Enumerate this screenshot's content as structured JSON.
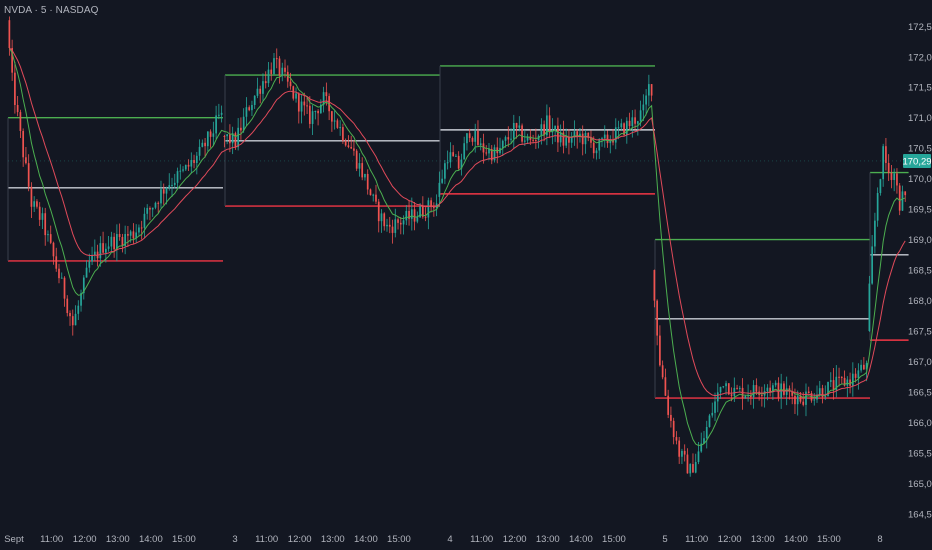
{
  "header": {
    "symbol_title": "NVDA · 5 · NASDAQ"
  },
  "colors": {
    "background": "#131722",
    "up": "#26a69a",
    "down": "#ef5350",
    "level_high": "#4caf50",
    "level_low": "#f23645",
    "level_mid": "#c8ccd4",
    "ema_fast": "#4caf50",
    "ema_slow": "#e04a5a",
    "axis_text": "#b2b5be",
    "price_tag": "#26a69a"
  },
  "chart_data": {
    "type": "candlestick",
    "interval": "5 min",
    "sessions_count": 5,
    "candles_per_session": 78,
    "ylim": [
      164.3,
      172.8
    ],
    "y_ticks": [
      "164,50",
      "165,00",
      "165,50",
      "166,00",
      "166,50",
      "167,00",
      "167,50",
      "168,00",
      "168,50",
      "169,00",
      "169,50",
      "170,00",
      "170,50",
      "171,00",
      "171,50",
      "172,00",
      "172,50"
    ],
    "x_ticks": [
      "Sept",
      "11:00",
      "12:00",
      "13:00",
      "14:00",
      "15:00",
      "3",
      "11:00",
      "12:00",
      "13:00",
      "14:00",
      "15:00",
      "4",
      "11:00",
      "12:00",
      "13:00",
      "14:00",
      "15:00",
      "5",
      "11:00",
      "12:00",
      "13:00",
      "14:00",
      "15:00",
      "8"
    ],
    "last_price_label": "170,29",
    "last_price": 170.29,
    "sessions": [
      {
        "label": "Sept 2",
        "path": [
          [
            0,
            172.6
          ],
          [
            2,
            171.6
          ],
          [
            5,
            170.7
          ],
          [
            9,
            169.6
          ],
          [
            13,
            169.3
          ],
          [
            17,
            168.7
          ],
          [
            21,
            168.1
          ],
          [
            24,
            167.6
          ],
          [
            26,
            167.9
          ],
          [
            30,
            168.6
          ],
          [
            35,
            168.9
          ],
          [
            40,
            169.0
          ],
          [
            46,
            169.1
          ],
          [
            52,
            169.5
          ],
          [
            58,
            169.9
          ],
          [
            64,
            170.1
          ],
          [
            70,
            170.4
          ],
          [
            75,
            170.8
          ],
          [
            77,
            171.0
          ]
        ],
        "open": 172.6,
        "high": 172.7,
        "low": 167.3,
        "close": 171.0,
        "pd_high": 171.0,
        "pd_mid": 169.85,
        "pd_low": 168.65
      },
      {
        "label": "Sept 3",
        "path": [
          [
            0,
            170.7
          ],
          [
            5,
            170.6
          ],
          [
            10,
            171.2
          ],
          [
            15,
            171.6
          ],
          [
            19,
            171.9
          ],
          [
            22,
            171.7
          ],
          [
            27,
            171.3
          ],
          [
            32,
            171.0
          ],
          [
            37,
            171.3
          ],
          [
            42,
            170.9
          ],
          [
            47,
            170.5
          ],
          [
            52,
            170.0
          ],
          [
            56,
            169.5
          ],
          [
            60,
            169.2
          ],
          [
            65,
            169.3
          ],
          [
            70,
            169.4
          ],
          [
            74,
            169.5
          ],
          [
            77,
            169.6
          ]
        ],
        "open": 170.7,
        "high": 172.4,
        "low": 168.9,
        "close": 169.6,
        "pd_high": 171.7,
        "pd_mid": 170.62,
        "pd_low": 169.55
      },
      {
        "label": "Sept 4",
        "path": [
          [
            0,
            169.7
          ],
          [
            4,
            170.4
          ],
          [
            8,
            170.2
          ],
          [
            12,
            170.8
          ],
          [
            16,
            170.5
          ],
          [
            22,
            170.4
          ],
          [
            28,
            170.8
          ],
          [
            34,
            170.6
          ],
          [
            40,
            170.9
          ],
          [
            46,
            170.6
          ],
          [
            52,
            170.7
          ],
          [
            58,
            170.5
          ],
          [
            64,
            170.7
          ],
          [
            70,
            170.9
          ],
          [
            75,
            171.1
          ],
          [
            77,
            171.5
          ]
        ],
        "open": 169.7,
        "high": 171.85,
        "low": 169.5,
        "close": 171.5,
        "pd_high": 171.85,
        "pd_mid": 170.8,
        "pd_low": 169.75
      },
      {
        "label": "Sept 5",
        "path": [
          [
            0,
            168.5
          ],
          [
            3,
            167.0
          ],
          [
            6,
            166.2
          ],
          [
            10,
            165.5
          ],
          [
            14,
            165.2
          ],
          [
            18,
            165.6
          ],
          [
            22,
            166.2
          ],
          [
            26,
            166.7
          ],
          [
            30,
            166.5
          ],
          [
            36,
            166.5
          ],
          [
            42,
            166.6
          ],
          [
            48,
            166.5
          ],
          [
            54,
            166.4
          ],
          [
            60,
            166.5
          ],
          [
            66,
            166.6
          ],
          [
            72,
            166.7
          ],
          [
            77,
            166.9
          ]
        ],
        "open": 168.5,
        "high": 169.0,
        "low": 164.3,
        "close": 166.9,
        "pd_high": 169.0,
        "pd_mid": 167.7,
        "pd_low": 166.4
      },
      {
        "label": "Sept 8",
        "path": [
          [
            0,
            167.5
          ],
          [
            2,
            168.8
          ],
          [
            4,
            169.8
          ],
          [
            6,
            170.4
          ],
          [
            8,
            170.1
          ],
          [
            10,
            170.1
          ],
          [
            12,
            169.6
          ],
          [
            13,
            169.7
          ]
        ],
        "partial_candles": 14,
        "open": 167.5,
        "high": 170.9,
        "low": 167.3,
        "close": 170.29,
        "pd_high": 170.1,
        "pd_mid": 168.75,
        "pd_low": 167.35
      }
    ],
    "series": [
      {
        "type": "ema",
        "period": 9
      },
      {
        "type": "ema",
        "period": 21
      }
    ]
  }
}
